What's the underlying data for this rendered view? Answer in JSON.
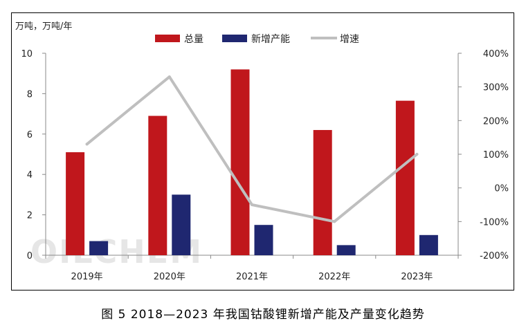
{
  "chart_data": {
    "type": "bar",
    "categories": [
      "2019年",
      "2020年",
      "2021年",
      "2022年",
      "2023年"
    ],
    "series": [
      {
        "name": "总量",
        "type": "bar",
        "axis": "left",
        "color": "#c0171c",
        "values": [
          5.1,
          6.9,
          9.2,
          6.2,
          7.65
        ]
      },
      {
        "name": "新增产能",
        "type": "bar",
        "axis": "left",
        "color": "#1f2770",
        "values": [
          0.7,
          3.0,
          1.5,
          0.5,
          1.0
        ]
      },
      {
        "name": "增速",
        "type": "line",
        "axis": "right",
        "color": "#bfbfbf",
        "values": [
          130,
          330,
          -50,
          -100,
          100
        ]
      }
    ],
    "ylabel": "万吨，万吨/年",
    "ylim": [
      0,
      10
    ],
    "yticks": [
      "0",
      "2",
      "4",
      "6",
      "8",
      "10"
    ],
    "y2lim": [
      -200,
      400
    ],
    "y2ticks": [
      "-200%",
      "-100%",
      "0%",
      "100%",
      "200%",
      "300%",
      "400%"
    ],
    "legend_position": "top",
    "grid": false,
    "watermark": "OILCHEM"
  },
  "caption": "图 5  2018—2023 年我国钴酸锂新增产能及产量变化趋势"
}
